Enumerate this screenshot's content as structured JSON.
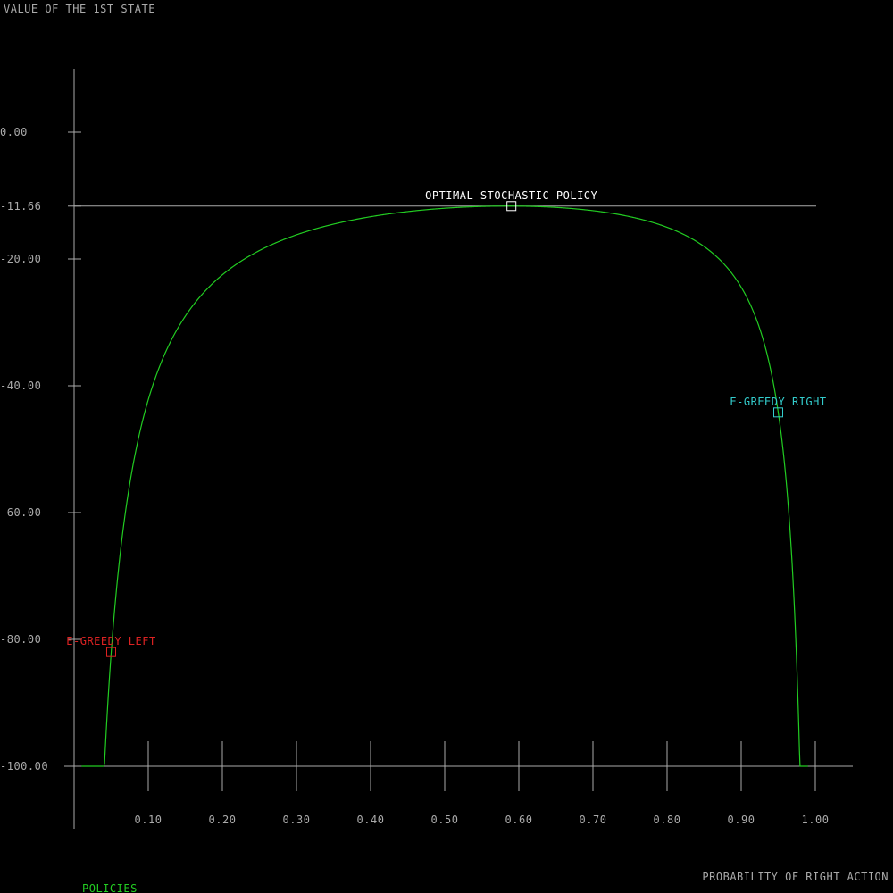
{
  "chart_data": {
    "type": "line",
    "title": "VALUE OF THE 1ST STATE",
    "xlabel": "PROBABILITY OF RIGHT ACTION",
    "ylabel": "",
    "xlim": [
      0,
      1.05
    ],
    "ylim": [
      -110,
      10
    ],
    "x_ticks": [
      0.1,
      0.2,
      0.3,
      0.4,
      0.5,
      0.6,
      0.7,
      0.8,
      0.9,
      1.0
    ],
    "x_tick_labels": [
      "0.10",
      "0.20",
      "0.30",
      "0.40",
      "0.50",
      "0.60",
      "0.70",
      "0.80",
      "0.90",
      "1.00"
    ],
    "y_ticks": [
      0,
      -11.66,
      -20,
      -40,
      -60,
      -80,
      -100
    ],
    "y_tick_labels": [
      "0.00",
      "-11.66",
      "-20.00",
      "-40.00",
      "-60.00",
      "-80.00",
      "-100.00"
    ],
    "grid": false,
    "legend": {
      "label": "POLICIES",
      "color": "#22cc22",
      "position": "bottom-left"
    },
    "series": [
      {
        "name": "POLICIES",
        "color": "#22cc22",
        "x_range": [
          0.01,
          0.99
        ],
        "formula": "v(p) = (4 - 2p) / (p(p - 1))"
      }
    ],
    "reference_line": {
      "y": -11.66,
      "color": "#aaaaaa"
    },
    "annotations": [
      {
        "label": "OPTIMAL STOCHASTIC POLICY",
        "x": 0.59,
        "y": -11.66,
        "color": "#ffffff"
      },
      {
        "label": "E-GREEDY LEFT",
        "x": 0.05,
        "y": -82.0,
        "color": "#dd2222"
      },
      {
        "label": "E-GREEDY RIGHT",
        "x": 0.95,
        "y": -44.2,
        "color": "#33cccc"
      }
    ],
    "colors": {
      "background": "#000000",
      "axis": "#aaaaaa",
      "text": "#aaaaaa"
    }
  }
}
